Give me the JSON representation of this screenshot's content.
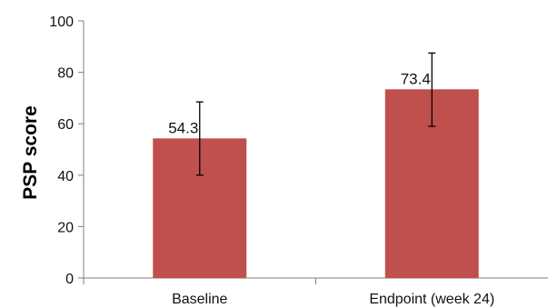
{
  "chart_data": {
    "type": "bar",
    "categories": [
      "Baseline",
      "Endpoint (week 24)"
    ],
    "values": [
      54.3,
      73.4
    ],
    "data_labels": [
      "54.3",
      "73.4"
    ],
    "error_bars": [
      {
        "low": 40,
        "high": 68.5
      },
      {
        "low": 59,
        "high": 87.5
      }
    ],
    "title": "",
    "xlabel": "",
    "ylabel": "PSP score",
    "ylim": [
      0,
      100
    ],
    "yticks": [
      0,
      20,
      40,
      60,
      80,
      100
    ],
    "ytick_labels": [
      "0",
      "20",
      "40",
      "60",
      "80",
      "100"
    ],
    "grid": false,
    "legend": "none",
    "bar_color": "#c0504d",
    "error_bar_color": "#000000",
    "axis_color": "#7f7f7f"
  }
}
